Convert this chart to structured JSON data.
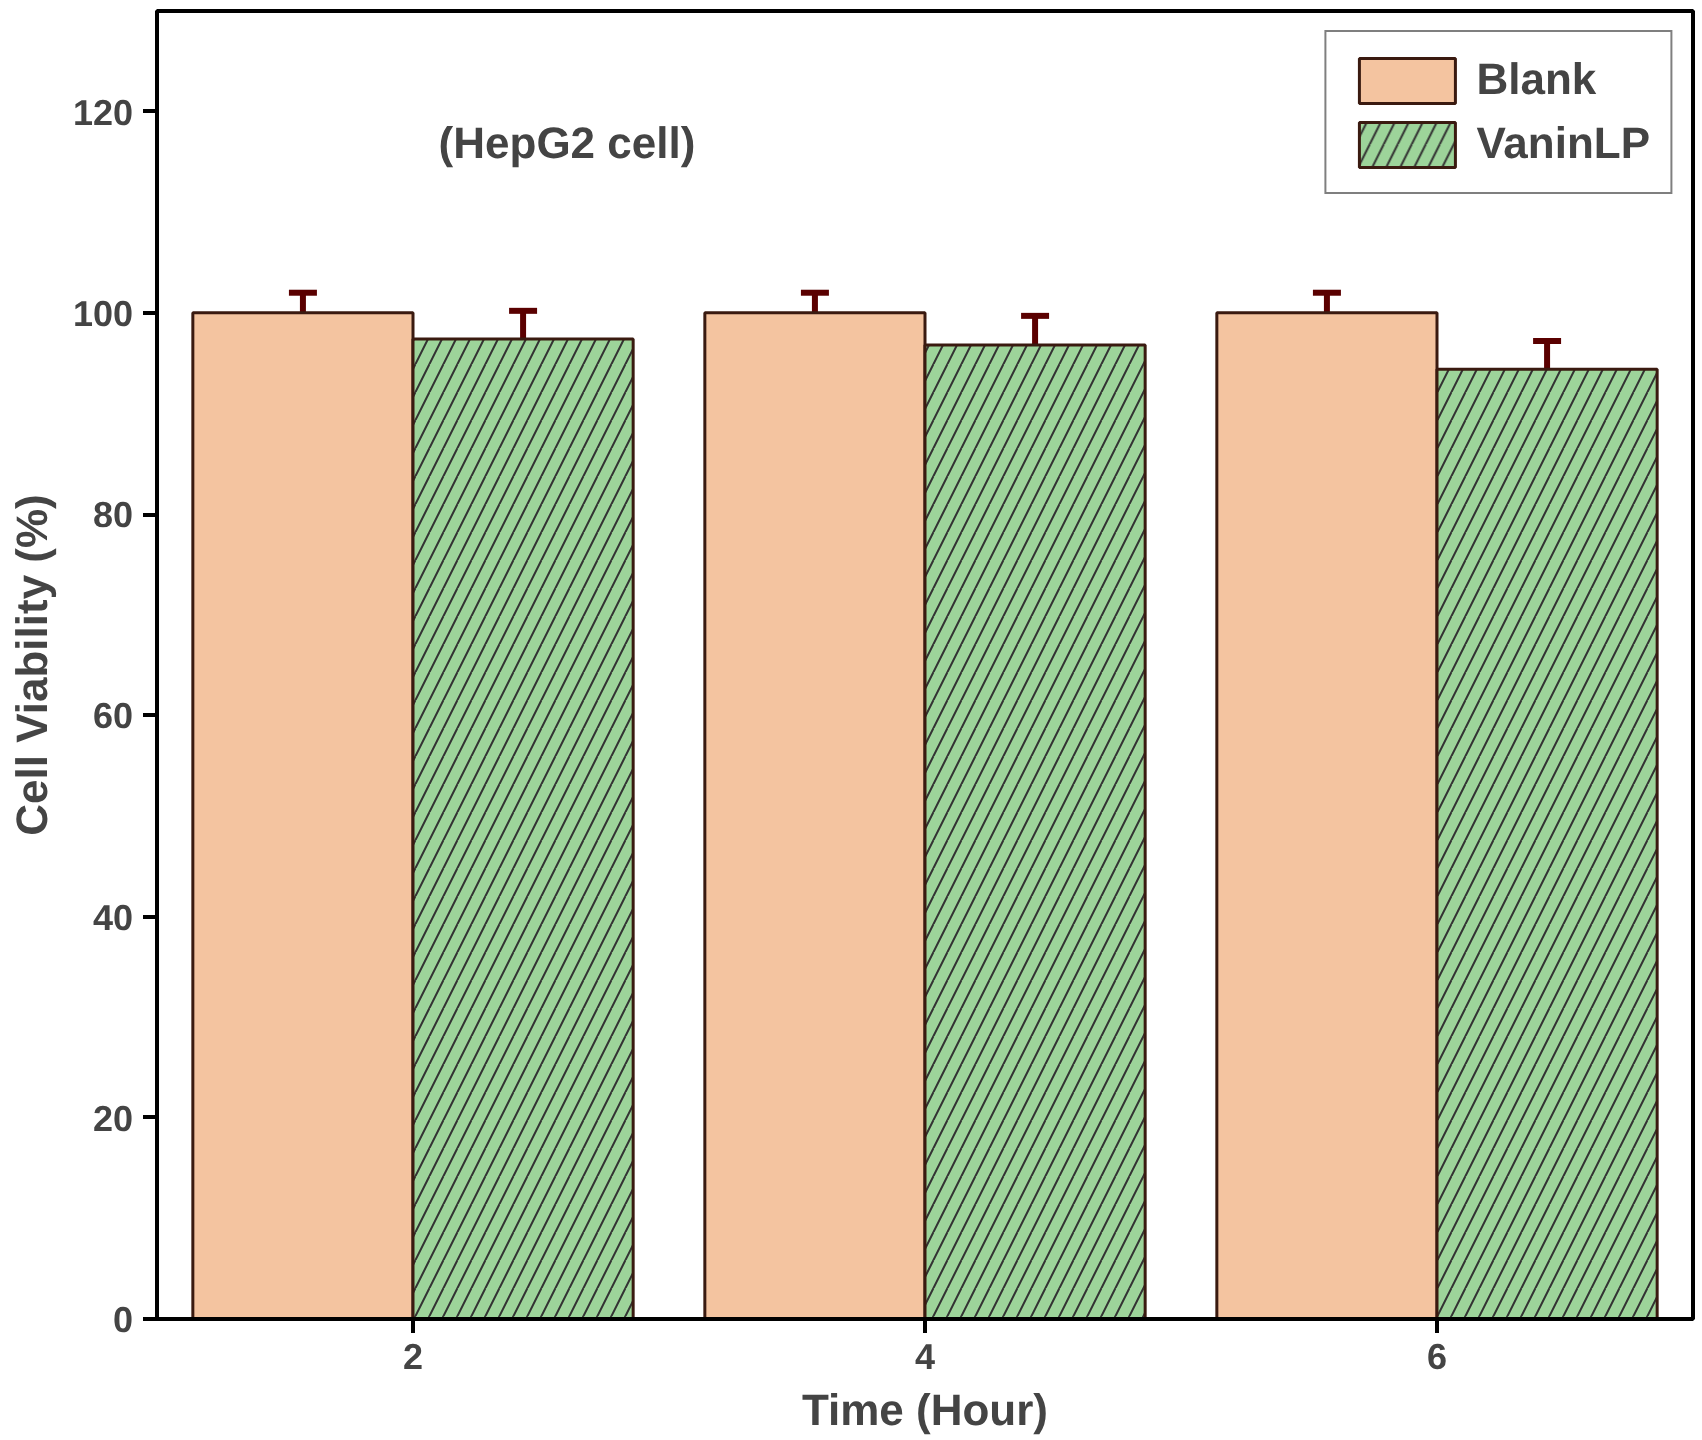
{
  "chart_data": {
    "type": "bar",
    "xlabel": "Time (Hour)",
    "ylabel": "Cell Viability (%)",
    "categories": [
      "2",
      "4",
      "6"
    ],
    "series": [
      {
        "name": "Blank",
        "color": "#f4c4a0",
        "values": [
          100,
          100,
          100
        ],
        "errors": [
          2,
          2,
          2
        ]
      },
      {
        "name": "VaninLP",
        "color": "#9dd49a",
        "values": [
          97.4,
          96.8,
          94.4
        ],
        "errors": [
          2.8,
          2.9,
          2.8
        ]
      }
    ],
    "ylim": [
      0,
      130
    ],
    "yticks": [
      0,
      20,
      40,
      60,
      80,
      100,
      120
    ],
    "annotations": [
      "(HepG2 cell)"
    ],
    "legend": "top right",
    "grid": false
  }
}
